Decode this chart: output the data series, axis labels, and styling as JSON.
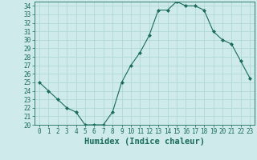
{
  "x": [
    0,
    1,
    2,
    3,
    4,
    5,
    6,
    7,
    8,
    9,
    10,
    11,
    12,
    13,
    14,
    15,
    16,
    17,
    18,
    19,
    20,
    21,
    22,
    23
  ],
  "y": [
    25.0,
    24.0,
    23.0,
    22.0,
    21.5,
    20.0,
    20.0,
    20.0,
    21.5,
    25.0,
    27.0,
    28.5,
    30.5,
    33.5,
    33.5,
    34.5,
    34.0,
    34.0,
    33.5,
    31.0,
    30.0,
    29.5,
    27.5,
    25.5
  ],
  "line_color": "#1a6b5a",
  "marker": "D",
  "marker_size": 2.0,
  "bg_color": "#ceeaea",
  "grid_color": "#b0d8d8",
  "xlabel": "Humidex (Indice chaleur)",
  "xlabel_fontsize": 7.5,
  "ylim": [
    20,
    34.5
  ],
  "xlim": [
    -0.5,
    23.5
  ],
  "yticks": [
    20,
    21,
    22,
    23,
    24,
    25,
    26,
    27,
    28,
    29,
    30,
    31,
    32,
    33,
    34
  ],
  "xticks": [
    0,
    1,
    2,
    3,
    4,
    5,
    6,
    7,
    8,
    9,
    10,
    11,
    12,
    13,
    14,
    15,
    16,
    17,
    18,
    19,
    20,
    21,
    22,
    23
  ],
  "tick_fontsize": 5.5,
  "tick_color": "#1a6b5a",
  "spine_color": "#1a6b5a"
}
